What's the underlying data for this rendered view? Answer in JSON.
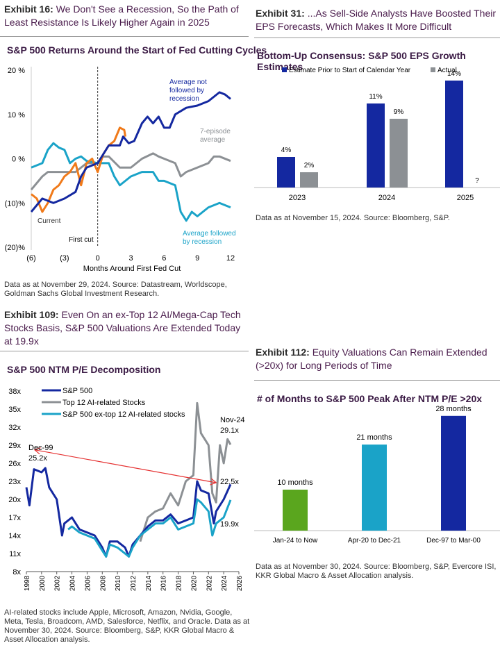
{
  "panels": [
    {
      "exhibit": "Exhibit 16:",
      "heading": "We Don't See a Recession, So the Path of Least Resistance Is Likely Higher Again in 2025",
      "note": "Data as at November 29, 2024. Source: Datastream, Worldscope, Goldman Sachs Global Investment Research."
    },
    {
      "exhibit": "Exhibit 31:",
      "heading": "...As Sell-Side Analysts Have Boosted Their EPS Forecasts, Which Makes It More Difficult",
      "note": "Data as at November 15, 2024. Source: Bloomberg, S&P."
    },
    {
      "exhibit": "Exhibit 109:",
      "heading": "Even On an ex-Top 12 AI/Mega-Cap Tech Stocks Basis, S&P 500 Valuations Are Extended Today at 19.9x",
      "note": "AI-related stocks include Apple, Microsoft, Amazon, Nvidia, Google, Meta, Tesla, Broadcom, AMD, Salesforce, Netflix, and Oracle. Data as at November 30, 2024. Source: Bloomberg, S&P, KKR Global Macro & Asset Allocation analysis."
    },
    {
      "exhibit": "Exhibit 112:",
      "heading": "Equity Valuations Can Remain Extended (>20x) for Long Periods of Time",
      "note": "Data as at November 30, 2024. Source: Bloomberg, S&P, Evercore ISI, KKR Global Macro & Asset Allocation analysis."
    }
  ],
  "chart_data": [
    {
      "type": "line",
      "title": "S&P 500 Returns Around the Start of Fed Cutting Cycles",
      "xlabel": "Months Around First Fed Cut",
      "ylabel": "",
      "xlim": [
        -6,
        12
      ],
      "ylim": [
        -20,
        20
      ],
      "xticks": [
        -6,
        -3,
        0,
        3,
        6,
        9,
        12
      ],
      "xtick_labels": [
        "(6)",
        "(3)",
        "0",
        "3",
        "6",
        "9",
        "12"
      ],
      "yticks": [
        20,
        10,
        0,
        -10,
        -20
      ],
      "ytick_labels": [
        "20 %",
        "10 %",
        "0 %",
        "(10)%",
        "(20)%"
      ],
      "annotations": {
        "first_cut": "First cut"
      },
      "series": [
        {
          "name": "7-episode average",
          "color": "#8c9094",
          "points": [
            [
              -6,
              -7
            ],
            [
              -5,
              -4
            ],
            [
              -4.5,
              -3
            ],
            [
              -3,
              -3
            ],
            [
              -2,
              -3
            ],
            [
              -1,
              -1
            ],
            [
              0,
              -1
            ],
            [
              0.5,
              0.5
            ],
            [
              1,
              0.5
            ],
            [
              2,
              -2
            ],
            [
              3,
              -2
            ],
            [
              4,
              0
            ],
            [
              5,
              1.2
            ],
            [
              5.5,
              0.5
            ],
            [
              6,
              0
            ],
            [
              7,
              -1
            ],
            [
              7.5,
              -4
            ],
            [
              8,
              -3
            ],
            [
              9,
              -2
            ],
            [
              10,
              -1
            ],
            [
              10.5,
              0.5
            ],
            [
              11,
              0.5
            ],
            [
              12,
              -0.5
            ]
          ]
        },
        {
          "name": "Average followed by recession",
          "color": "#1aa3c8",
          "points": [
            [
              -6,
              -2
            ],
            [
              -5,
              -1
            ],
            [
              -4.5,
              2
            ],
            [
              -4,
              3.5
            ],
            [
              -3.5,
              2.5
            ],
            [
              -3,
              2
            ],
            [
              -2.5,
              -1
            ],
            [
              -2,
              0
            ],
            [
              -1.5,
              0.5
            ],
            [
              -1,
              -0.5
            ],
            [
              0,
              -1
            ],
            [
              1,
              -1
            ],
            [
              1.5,
              -4
            ],
            [
              2,
              -6
            ],
            [
              3,
              -4
            ],
            [
              4,
              -3
            ],
            [
              5,
              -3
            ],
            [
              5.5,
              -5
            ],
            [
              6,
              -5
            ],
            [
              7,
              -6
            ],
            [
              7.5,
              -12
            ],
            [
              8,
              -14
            ],
            [
              8.5,
              -12
            ],
            [
              9,
              -13
            ],
            [
              10,
              -11
            ],
            [
              11,
              -10
            ],
            [
              12,
              -11
            ]
          ]
        },
        {
          "name": "Current",
          "color": "#f07a1a",
          "points": [
            [
              -6,
              -8
            ],
            [
              -5.5,
              -9
            ],
            [
              -5,
              -12
            ],
            [
              -4.5,
              -10
            ],
            [
              -4,
              -7
            ],
            [
              -3.5,
              -6
            ],
            [
              -3,
              -4
            ],
            [
              -2.5,
              -3
            ],
            [
              -2,
              -1
            ],
            [
              -1.5,
              -6
            ],
            [
              -1,
              -1
            ],
            [
              -0.5,
              0
            ],
            [
              0,
              -3
            ],
            [
              0.5,
              1
            ],
            [
              1,
              3
            ],
            [
              1.5,
              4
            ],
            [
              2,
              7
            ],
            [
              2.4,
              6.5
            ],
            [
              2.5,
              5
            ]
          ]
        },
        {
          "name": "Average not followed by recession",
          "color": "#1428a0",
          "points": [
            [
              -6,
              -12
            ],
            [
              -5,
              -9
            ],
            [
              -4,
              -10
            ],
            [
              -3,
              -9
            ],
            [
              -2,
              -7.5
            ],
            [
              -1.5,
              -4
            ],
            [
              -1,
              -2
            ],
            [
              0,
              -1
            ],
            [
              0.5,
              1
            ],
            [
              1,
              3
            ],
            [
              2,
              3
            ],
            [
              2.3,
              5
            ],
            [
              2.8,
              3.5
            ],
            [
              3.3,
              4
            ],
            [
              4,
              8
            ],
            [
              4.5,
              9.5
            ],
            [
              5,
              8
            ],
            [
              5.5,
              9.5
            ],
            [
              6,
              7
            ],
            [
              6.5,
              7
            ],
            [
              7,
              10
            ],
            [
              8,
              11.5
            ],
            [
              9,
              12
            ],
            [
              10,
              13
            ],
            [
              11,
              15
            ],
            [
              11.5,
              14.5
            ],
            [
              12,
              13.5
            ]
          ]
        }
      ]
    },
    {
      "type": "bar",
      "title": "Bottom-Up Consensus: S&P 500 EPS Growth Estimates",
      "categories": [
        "2023",
        "2024",
        "2025"
      ],
      "series": [
        {
          "name": "Estimate Prior to Start of Calendar Year",
          "color": "#1428a0",
          "values": [
            4,
            11,
            14
          ],
          "labels": [
            "4%",
            "11%",
            "14%"
          ]
        },
        {
          "name": "Actual",
          "color": "#8c9094",
          "values": [
            2,
            9,
            null
          ],
          "labels": [
            "2%",
            "9%",
            "?"
          ]
        }
      ],
      "ylim": [
        0,
        15
      ]
    },
    {
      "type": "line",
      "title": "S&P 500 NTM P/E Decomposition",
      "xlim": [
        1998,
        2026
      ],
      "ylim": [
        8,
        38
      ],
      "xticks": [
        1998,
        2000,
        2002,
        2004,
        2006,
        2008,
        2010,
        2012,
        2014,
        2016,
        2018,
        2020,
        2022,
        2024,
        2026
      ],
      "yticks": [
        8,
        11,
        14,
        17,
        20,
        23,
        26,
        29,
        32,
        35,
        38
      ],
      "ytick_labels": [
        "8x",
        "11x",
        "14x",
        "17x",
        "20x",
        "23x",
        "26x",
        "29x",
        "32x",
        "35x",
        "38x"
      ],
      "annotations": {
        "dec99": "Dec-99",
        "dec99_val": "25.2x",
        "nov24": "Nov-24",
        "nov24_val": "29.1x",
        "sp_val": "22.5x",
        "ex_val": "19.9x"
      },
      "series": [
        {
          "name": "Top 12 AI-related Stocks",
          "color": "#8c9094",
          "points": [
            [
              2013,
              13
            ],
            [
              2014,
              17
            ],
            [
              2015,
              18
            ],
            [
              2016,
              18.5
            ],
            [
              2017,
              21
            ],
            [
              2018,
              19
            ],
            [
              2019,
              23
            ],
            [
              2020,
              24
            ],
            [
              2020.5,
              36
            ],
            [
              2021,
              31
            ],
            [
              2021.5,
              30
            ],
            [
              2022,
              29
            ],
            [
              2022.5,
              21
            ],
            [
              2023,
              19.5
            ],
            [
              2023.5,
              29
            ],
            [
              2024,
              26
            ],
            [
              2024.5,
              30
            ],
            [
              2024.9,
              29.1
            ]
          ]
        },
        {
          "name": "S&P 500",
          "color": "#1428a0",
          "points": [
            [
              1998,
              22
            ],
            [
              1998.4,
              19
            ],
            [
              1999,
              25
            ],
            [
              2000,
              24.5
            ],
            [
              2000.5,
              25.2
            ],
            [
              2001,
              22
            ],
            [
              2002,
              20
            ],
            [
              2002.7,
              14
            ],
            [
              2003,
              16
            ],
            [
              2004,
              17
            ],
            [
              2005,
              15
            ],
            [
              2006,
              14.5
            ],
            [
              2007,
              14
            ],
            [
              2008,
              12
            ],
            [
              2008.5,
              10.5
            ],
            [
              2009,
              13
            ],
            [
              2010,
              13
            ],
            [
              2011,
              12
            ],
            [
              2011.5,
              10.5
            ],
            [
              2012,
              12.5
            ],
            [
              2013,
              14
            ],
            [
              2014,
              15.5
            ],
            [
              2015,
              16.5
            ],
            [
              2016,
              16.5
            ],
            [
              2017,
              17.5
            ],
            [
              2018,
              16
            ],
            [
              2019,
              16.5
            ],
            [
              2020,
              17
            ],
            [
              2020.5,
              23
            ],
            [
              2021,
              21.5
            ],
            [
              2022,
              21
            ],
            [
              2022.7,
              16
            ],
            [
              2023,
              18
            ],
            [
              2024,
              20
            ],
            [
              2024.9,
              22.5
            ]
          ]
        },
        {
          "name": "S&P 500 ex-top 12 AI-related stocks",
          "color": "#1aa3c8",
          "points": [
            [
              2003.5,
              15
            ],
            [
              2004,
              15.5
            ],
            [
              2005,
              14.5
            ],
            [
              2006,
              14
            ],
            [
              2007,
              13.5
            ],
            [
              2008,
              11.5
            ],
            [
              2008.5,
              10.5
            ],
            [
              2009,
              12.5
            ],
            [
              2010,
              12
            ],
            [
              2011,
              11
            ],
            [
              2011.5,
              10.5
            ],
            [
              2012,
              12
            ],
            [
              2013,
              14
            ],
            [
              2014,
              15
            ],
            [
              2015,
              16
            ],
            [
              2016,
              16
            ],
            [
              2017,
              17
            ],
            [
              2018,
              15
            ],
            [
              2019,
              15.5
            ],
            [
              2020,
              16
            ],
            [
              2020.5,
              20
            ],
            [
              2021,
              19.5
            ],
            [
              2022,
              18
            ],
            [
              2022.5,
              14
            ],
            [
              2023,
              16
            ],
            [
              2024,
              17
            ],
            [
              2024.9,
              19.9
            ]
          ]
        }
      ]
    },
    {
      "type": "bar",
      "title": "# of Months to S&P 500 Peak After NTM P/E >20x",
      "categories": [
        "Jan-24 to Now",
        "Apr-20 to Dec-21",
        "Dec-97 to Mar-00"
      ],
      "values": [
        10,
        21,
        28
      ],
      "labels": [
        "10 months",
        "21 months",
        "28 months"
      ],
      "colors": [
        "#5aa61e",
        "#1aa3c8",
        "#1428a0"
      ],
      "ylim": [
        0,
        30
      ]
    }
  ]
}
